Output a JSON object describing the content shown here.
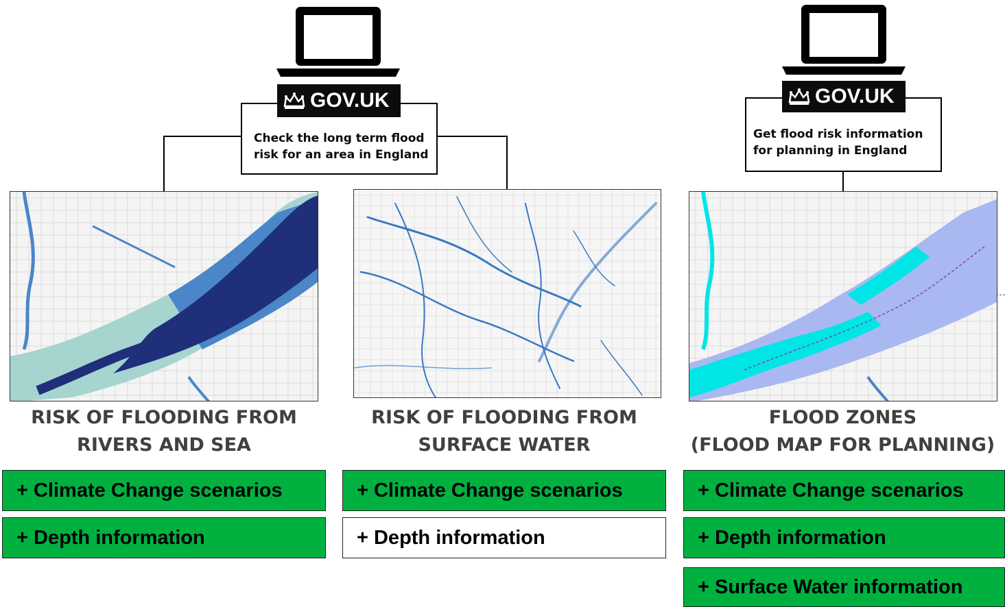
{
  "colors": {
    "feature_available": "#00b140",
    "feature_unavailable": "#ffffff",
    "govuk_black": "#0b0c0c",
    "rivers_sea_high": "#1f2f7a",
    "rivers_sea_medium": "#4a86c8",
    "rivers_sea_low": "#a6d4cf",
    "surface_water": "#3a78c2",
    "flood_zone_3": "#00e5e5",
    "flood_zone_2": "#a9b8f0"
  },
  "services": [
    {
      "badge": "GOV.UK",
      "badge_icon": "crown-icon",
      "device_icon": "laptop-icon",
      "text": "Check the long term flood risk for an area in England"
    },
    {
      "badge": "GOV.UK",
      "badge_icon": "crown-icon",
      "device_icon": "laptop-icon",
      "text": "Get flood risk information for planning in England"
    }
  ],
  "products": [
    {
      "title_line1": "RISK OF FLOODING FROM",
      "title_line2": "RIVERS AND SEA",
      "features": [
        {
          "label": "+ Climate Change scenarios",
          "available": true
        },
        {
          "label": "+ Depth information",
          "available": true
        }
      ]
    },
    {
      "title_line1": "RISK OF FLOODING FROM",
      "title_line2": "SURFACE WATER",
      "features": [
        {
          "label": "+ Climate Change scenarios",
          "available": true
        },
        {
          "label": "+ Depth information",
          "available": false
        }
      ]
    },
    {
      "title_line1": "FLOOD ZONES",
      "title_line2": "(FLOOD MAP FOR PLANNING)",
      "features": [
        {
          "label": "+ Climate Change scenarios",
          "available": true
        },
        {
          "label": "+ Depth information",
          "available": true
        },
        {
          "label": "+ Surface Water information",
          "available": true
        }
      ]
    }
  ]
}
